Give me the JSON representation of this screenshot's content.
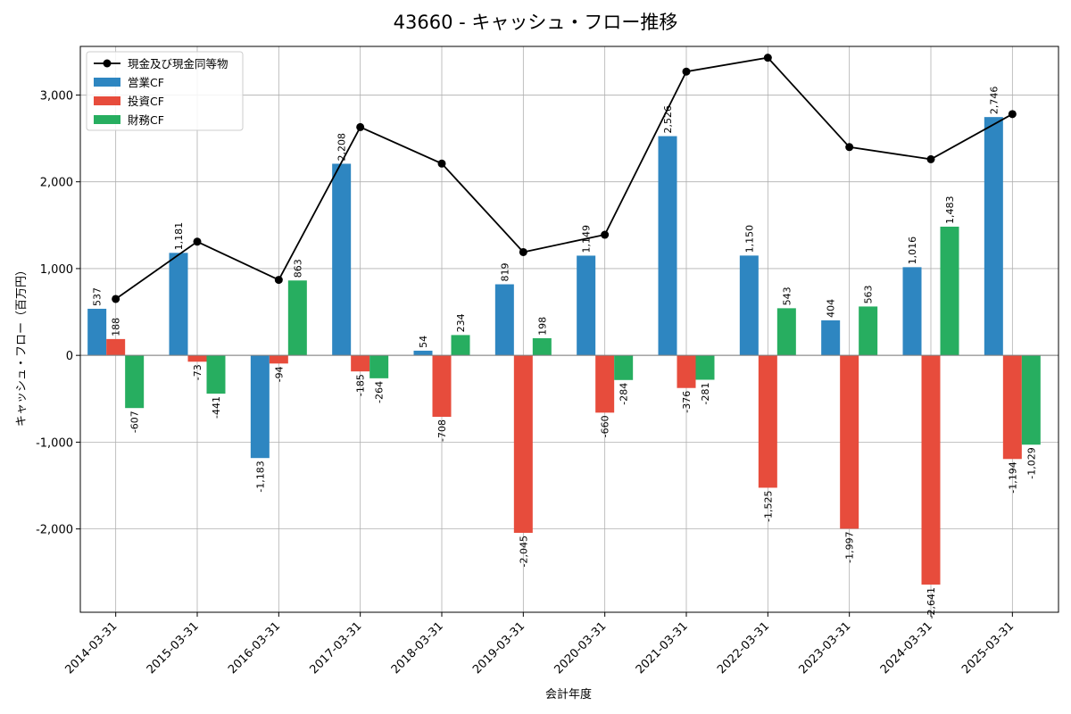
{
  "chart_data": {
    "type": "bar",
    "title": "43660 - キャッシュ・フロー推移",
    "xlabel": "会計年度",
    "ylabel": "キャッシュ・フロー（百万円）",
    "categories": [
      "2014-03-31",
      "2015-03-31",
      "2016-03-31",
      "2017-03-31",
      "2018-03-31",
      "2019-03-31",
      "2020-03-31",
      "2021-03-31",
      "2022-03-31",
      "2023-03-31",
      "2024-03-31",
      "2025-03-31"
    ],
    "ylim": [
      -2960,
      3560
    ],
    "yticks": [
      -2000,
      -1000,
      0,
      1000,
      2000,
      3000
    ],
    "ytick_labels": [
      "-2,000",
      "-1,000",
      "0",
      "1,000",
      "2,000",
      "3,000"
    ],
    "grid": true,
    "legend_position": "top-left",
    "series": [
      {
        "name": "営業CF",
        "kind": "bar",
        "color": "#2e86c1",
        "values": [
          537,
          1181,
          -1183,
          2208,
          54,
          819,
          1149,
          2526,
          1150,
          404,
          1016,
          2746
        ],
        "labels": [
          "537",
          "1,181",
          "-1,183",
          "2,208",
          "54",
          "819",
          "1,149",
          "2,526",
          "1,150",
          "404",
          "1,016",
          "2,746"
        ]
      },
      {
        "name": "投資CF",
        "kind": "bar",
        "color": "#e74c3c",
        "values": [
          188,
          -73,
          -94,
          -185,
          -708,
          -2045,
          -660,
          -376,
          -1525,
          -1997,
          -2641,
          -1194
        ],
        "labels": [
          "188",
          "-73",
          "-94",
          "-185",
          "-708",
          "-2,045",
          "-660",
          "-376",
          "-1,525",
          "-1,997",
          "-2,641",
          "-1,194"
        ]
      },
      {
        "name": "財務CF",
        "kind": "bar",
        "color": "#27ae60",
        "values": [
          -607,
          -441,
          863,
          -264,
          234,
          198,
          -284,
          -281,
          543,
          563,
          1483,
          -1029
        ],
        "labels": [
          "-607",
          "-441",
          "863",
          "-264",
          "234",
          "198",
          "-284",
          "-281",
          "543",
          "563",
          "1,483",
          "-1,029"
        ]
      },
      {
        "name": "現金及び現金同等物",
        "kind": "line",
        "color": "#000000",
        "values": [
          650,
          1310,
          870,
          2630,
          2210,
          1190,
          1390,
          3270,
          3430,
          2400,
          2260,
          2780
        ]
      }
    ]
  }
}
